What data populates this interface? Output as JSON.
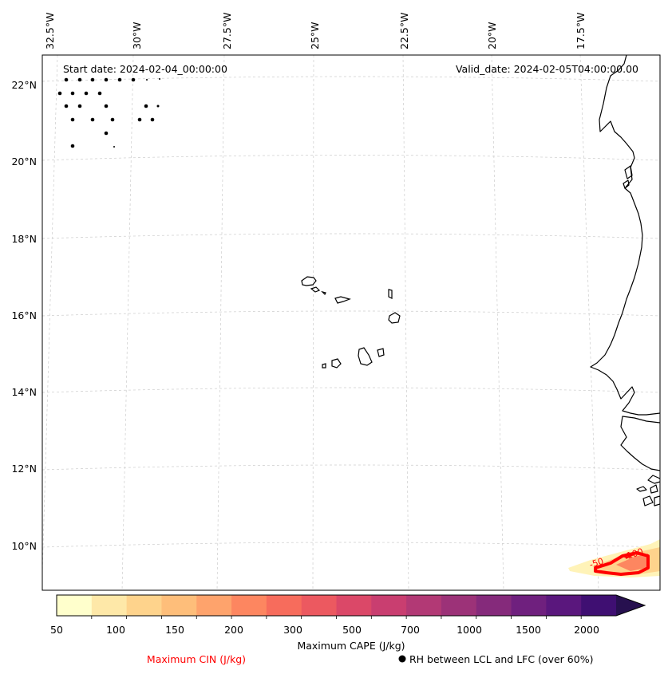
{
  "header": {
    "start_date": "Start date: 2024-02-04_00:00:00",
    "valid_date": "Valid_date: 2024-02-05T04:00:00.00"
  },
  "axes": {
    "lon_labels": [
      "32.5°W",
      "30°W",
      "27.5°W",
      "25°W",
      "22.5°W",
      "20°W",
      "17.5°W"
    ],
    "lat_labels": [
      "22°N",
      "20°N",
      "18°N",
      "16°N",
      "14°N",
      "12°N",
      "10°N"
    ]
  },
  "overlay": {
    "cin_contour_labels": [
      "-50",
      "-100"
    ]
  },
  "colorbar": {
    "tick_labels": [
      "50",
      "100",
      "150",
      "200",
      "300",
      "500",
      "700",
      "1000",
      "1500",
      "2000"
    ],
    "label": "Maximum CAPE (J/kg)",
    "colors": [
      "#ffffcc",
      "#fee8a8",
      "#fed38c",
      "#febe7a",
      "#fea36c",
      "#fd8660",
      "#f76c5c",
      "#ec5960",
      "#db4868",
      "#c93e70",
      "#b23975",
      "#9c3278",
      "#852a7b",
      "#6f207e",
      "#5a177d",
      "#3f0f72",
      "#27104f"
    ]
  },
  "legend": {
    "cin_label": "Maximum CIN (J/kg)",
    "rh_label": "RH between LCL and LFC (over 60%)",
    "cin_color": "#ff0000"
  }
}
